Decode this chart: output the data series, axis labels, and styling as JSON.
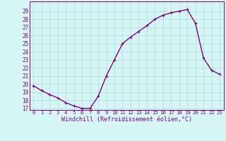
{
  "x": [
    0,
    1,
    2,
    3,
    4,
    5,
    6,
    7,
    8,
    9,
    10,
    11,
    12,
    13,
    14,
    15,
    16,
    17,
    18,
    19,
    20,
    21,
    22,
    23
  ],
  "y": [
    19.8,
    19.2,
    18.7,
    18.3,
    17.7,
    17.3,
    17.0,
    17.0,
    18.5,
    21.0,
    23.0,
    25.0,
    25.8,
    26.5,
    27.2,
    28.0,
    28.5,
    28.8,
    29.0,
    29.2,
    27.5,
    23.2,
    21.7,
    21.2
  ],
  "line_color": "#800080",
  "marker": "+",
  "bg_color": "#d6f5f5",
  "grid_color": "#aadddd",
  "xlabel": "Windchill (Refroidissement éolien,°C)",
  "xlabel_color": "#800080",
  "xtick_color": "#800080",
  "ytick_color": "#800080",
  "xlim": [
    -0.5,
    23.5
  ],
  "ymin": 16.8,
  "ymax": 30.2,
  "yticks": [
    17,
    18,
    19,
    20,
    21,
    22,
    23,
    24,
    25,
    26,
    27,
    28,
    29
  ],
  "xticks": [
    0,
    1,
    2,
    3,
    4,
    5,
    6,
    7,
    8,
    9,
    10,
    11,
    12,
    13,
    14,
    15,
    16,
    17,
    18,
    19,
    20,
    21,
    22,
    23
  ],
  "xtick_labels": [
    "0",
    "1",
    "2",
    "3",
    "4",
    "5",
    "6",
    "7",
    "8",
    "9",
    "10",
    "11",
    "12",
    "13",
    "14",
    "15",
    "16",
    "17",
    "18",
    "19",
    "20",
    "21",
    "22",
    "23"
  ],
  "ytick_labels": [
    "17",
    "18",
    "19",
    "20",
    "21",
    "22",
    "23",
    "24",
    "25",
    "26",
    "27",
    "28",
    "29"
  ],
  "linewidth": 1.0,
  "markersize": 3,
  "xlabel_fontsize": 6.0,
  "xtick_fontsize": 5.2,
  "ytick_fontsize": 5.5
}
